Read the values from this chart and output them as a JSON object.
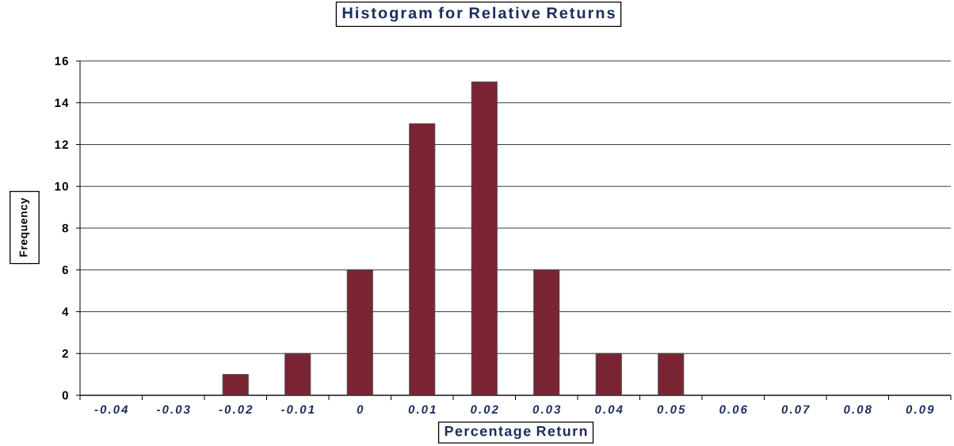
{
  "chart_data": {
    "type": "bar",
    "title": "Histogram for Relative Returns",
    "xlabel": "Percentage Return",
    "ylabel": "Frequency",
    "categories": [
      "-0.04",
      "-0.03",
      "-0.02",
      "-0.01",
      "0",
      "0.01",
      "0.02",
      "0.03",
      "0.04",
      "0.05",
      "0.06",
      "0.07",
      "0.08",
      "0.09"
    ],
    "values": [
      0,
      0,
      1,
      2,
      6,
      13,
      15,
      6,
      2,
      2,
      0,
      0,
      0,
      0
    ],
    "color": "#7b2434",
    "ylim": [
      0,
      16
    ],
    "yticks": [
      0,
      2,
      4,
      6,
      8,
      10,
      12,
      14,
      16
    ],
    "grid": "y"
  }
}
